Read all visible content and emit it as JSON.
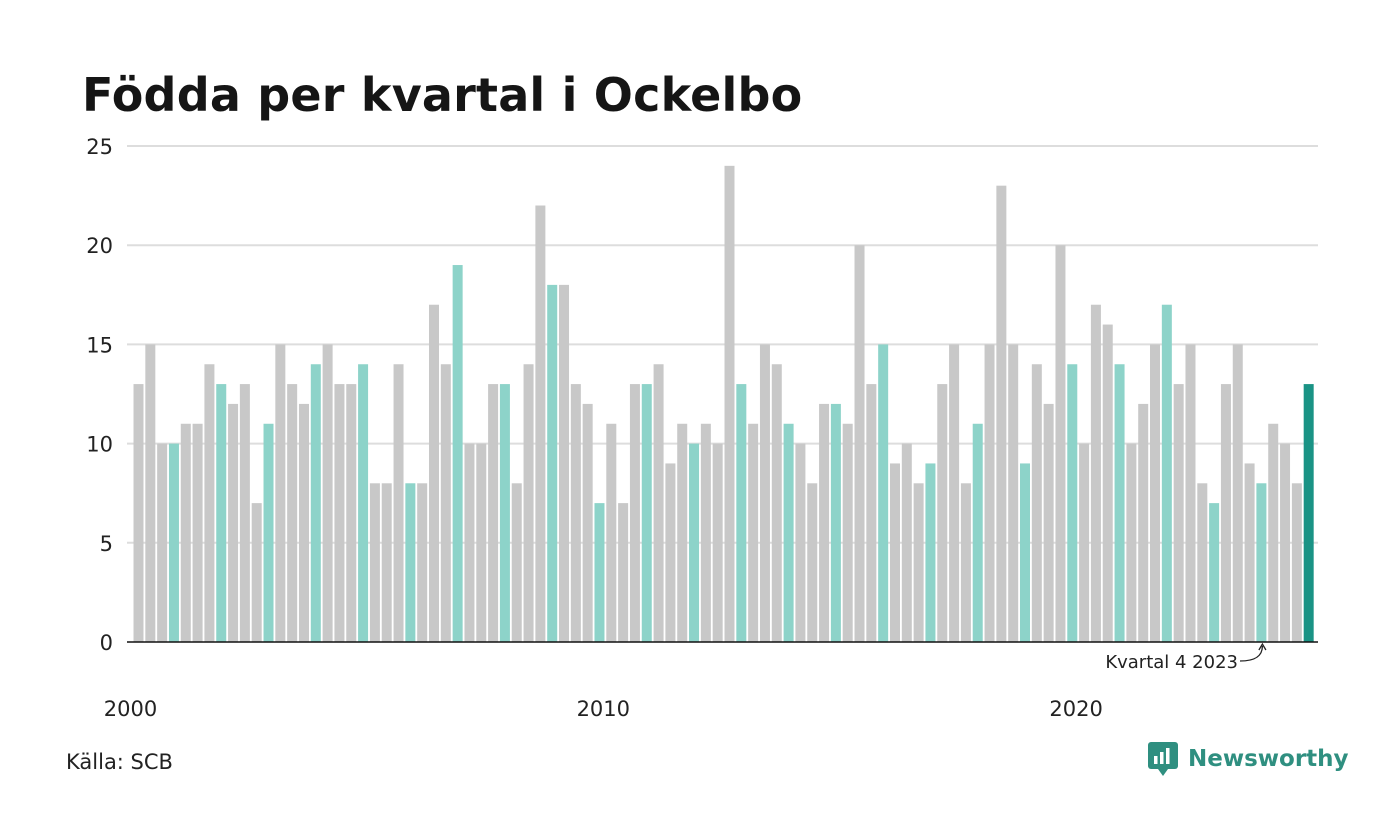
{
  "header": {
    "title": "Födda per kvartal i Ockelbo"
  },
  "footer": {
    "source": "Källa: SCB",
    "brand": "Newsworthy"
  },
  "colors": {
    "bar_default": "#c8c8c8",
    "bar_q1": "#8dd3c9",
    "bar_latest": "#1a9385",
    "grid": "#dddddd",
    "axis": "#111111",
    "brand": "#2f8f80"
  },
  "chart_data": {
    "type": "bar",
    "title": "Födda per kvartal i Ockelbo",
    "xlabel": "",
    "ylabel": "",
    "ylim": [
      0,
      25
    ],
    "yticks": [
      0,
      5,
      10,
      15,
      20,
      25
    ],
    "xtick_labels": [
      "2000",
      "2010",
      "2020"
    ],
    "first_period": "2000 Q1",
    "last_period": "2024 Q4",
    "grid": true,
    "annotation": {
      "text": "Kvartal 4 2023",
      "target": "2023 Q4"
    },
    "values": [
      13,
      15,
      10,
      10,
      11,
      11,
      14,
      13,
      12,
      13,
      7,
      11,
      15,
      13,
      12,
      14,
      15,
      13,
      13,
      14,
      8,
      8,
      14,
      8,
      8,
      17,
      14,
      19,
      10,
      10,
      13,
      13,
      8,
      14,
      22,
      18,
      18,
      13,
      12,
      7,
      11,
      7,
      13,
      13,
      14,
      9,
      11,
      10,
      11,
      10,
      24,
      13,
      11,
      15,
      14,
      11,
      10,
      8,
      12,
      12,
      11,
      20,
      13,
      15,
      9,
      10,
      8,
      9,
      13,
      15,
      8,
      11,
      15,
      23,
      15,
      9,
      14,
      12,
      20,
      14,
      10,
      17,
      16,
      14,
      10,
      12,
      15,
      17,
      13,
      15,
      8,
      7,
      13,
      15,
      9,
      8,
      11,
      10,
      8,
      13
    ]
  }
}
